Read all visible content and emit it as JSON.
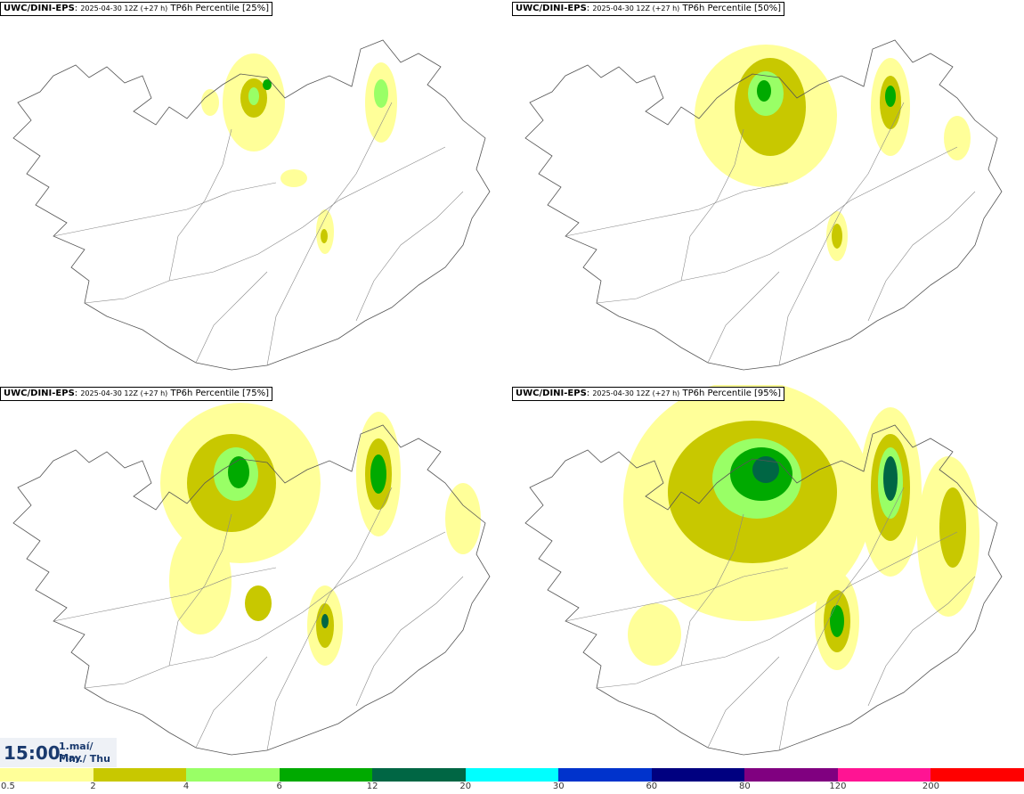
{
  "panels": [
    {
      "source": "UWC/DINI-EPS",
      "run": "2025-04-30 12Z (+27 h)",
      "field": "TP6h Percentile [25%]"
    },
    {
      "source": "UWC/DINI-EPS",
      "run": "2025-04-30 12Z (+27 h)",
      "field": "TP6h Percentile [50%]"
    },
    {
      "source": "UWC/DINI-EPS",
      "run": "2025-04-30 12Z (+27 h)",
      "field": "TP6h Percentile [75%]"
    },
    {
      "source": "UWC/DINI-EPS",
      "run": "2025-04-30 12Z (+27 h)",
      "field": "TP6h Percentile [95%]"
    }
  ],
  "time": {
    "clock": "15:00",
    "line1": "1.maí/ May",
    "line2": "Fim./ Thu"
  },
  "legend": {
    "colors": [
      "#ffff99",
      "#c8c800",
      "#99ff66",
      "#00aa00",
      "#006644",
      "#00ffff",
      "#0033cc",
      "#000080",
      "#800080",
      "#ff1493",
      "#ff0000"
    ],
    "labels": [
      "0.5",
      "2",
      "4",
      "6",
      "12",
      "20",
      "30",
      "60",
      "80",
      "120",
      "200"
    ]
  }
}
